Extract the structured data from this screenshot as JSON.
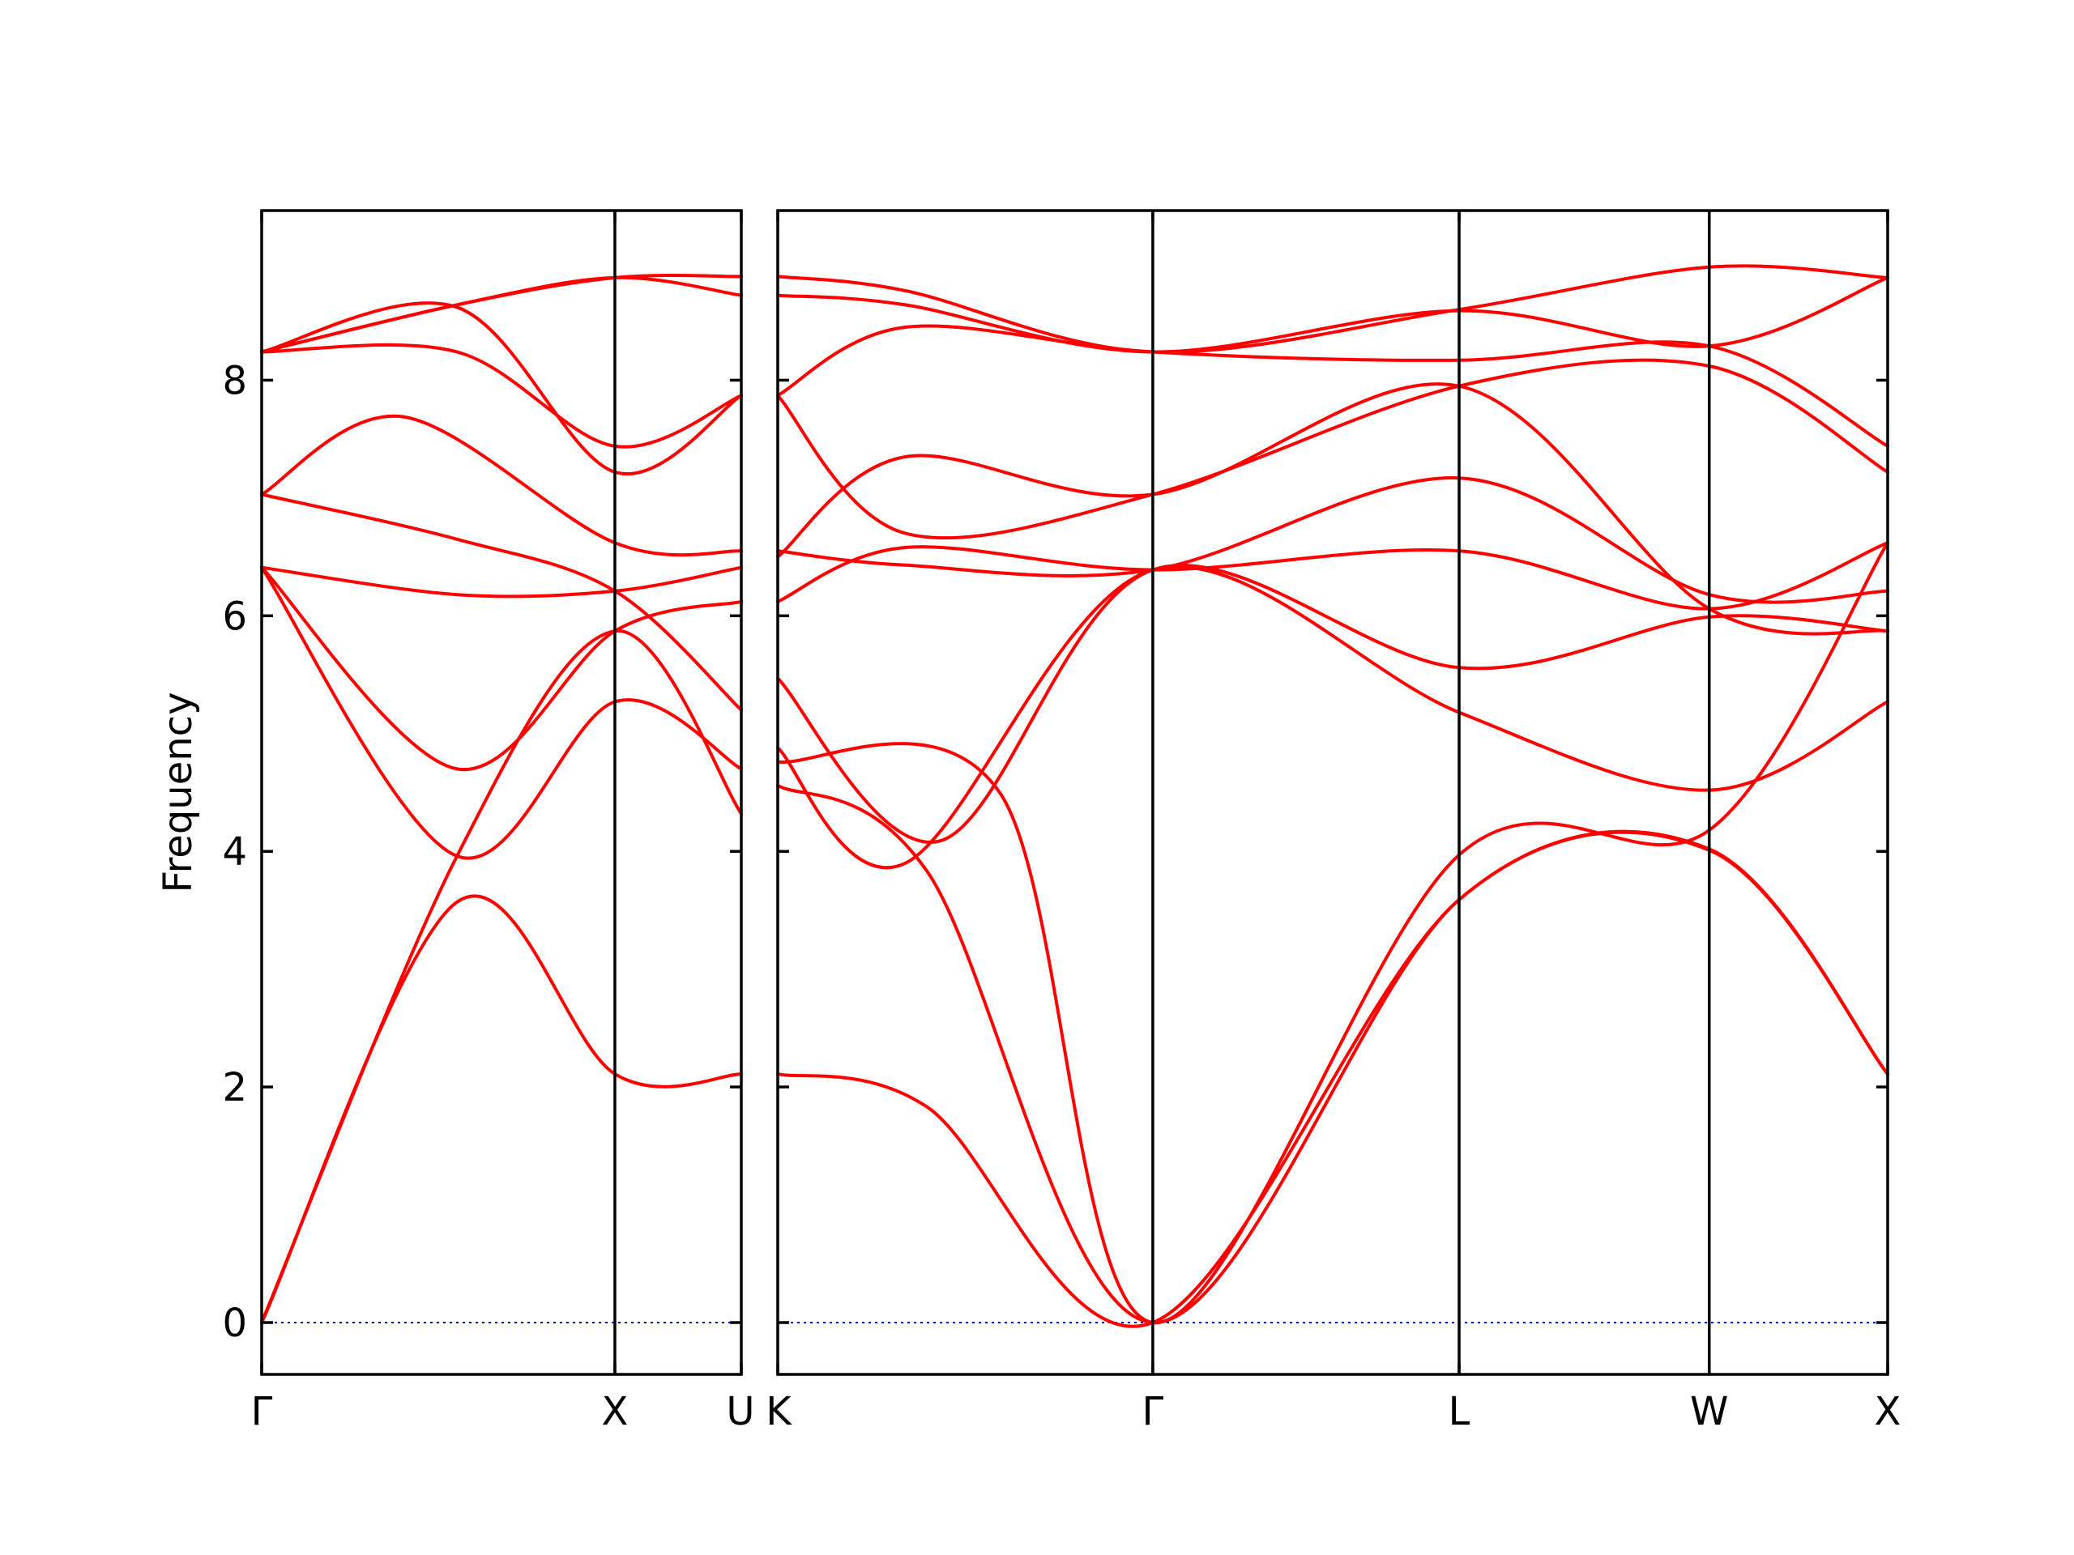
{
  "chart_data": {
    "type": "line",
    "title": "",
    "ylabel": "Frequency",
    "ylim": [
      -0.44,
      9.44
    ],
    "yticks": [
      0,
      2,
      4,
      6,
      8
    ],
    "grid": false,
    "colors": {
      "bands": "#ff0000",
      "zero_line": "#0000cc"
    },
    "panels": [
      {
        "name": "left",
        "xlim": [
          0,
          1.768
        ],
        "labels": [
          {
            "x": 0,
            "text": "Γ"
          },
          {
            "x": 1.302,
            "text": "X"
          },
          {
            "x": 1.768,
            "text": "U"
          }
        ]
      },
      {
        "name": "right",
        "xlim": [
          0,
          4.087
        ],
        "labels": [
          {
            "x": 0,
            "text": "K"
          },
          {
            "x": 1.381,
            "text": "Γ"
          },
          {
            "x": 2.509,
            "text": "L"
          },
          {
            "x": 3.43,
            "text": "W"
          },
          {
            "x": 4.087,
            "text": "X"
          }
        ]
      }
    ],
    "series": [
      {
        "panel": 0,
        "x": [
          0,
          0.72,
          1.302,
          1.768
        ],
        "y": [
          0,
          3.57,
          2.11,
          2.11
        ]
      },
      {
        "panel": 0,
        "x": [
          0,
          0.72,
          1.302,
          1.768
        ],
        "y": [
          0,
          3.96,
          5.87,
          4.32
        ]
      },
      {
        "panel": 0,
        "x": [
          0,
          0.72,
          1.302,
          1.768
        ],
        "y": [
          6.41,
          3.96,
          5.27,
          4.7
        ]
      },
      {
        "panel": 0,
        "x": [
          0,
          0.72,
          1.302,
          1.768
        ],
        "y": [
          6.41,
          4.7,
          5.87,
          6.12
        ]
      },
      {
        "panel": 0,
        "x": [
          0,
          0.72,
          1.302,
          1.768
        ],
        "y": [
          6.41,
          6.18,
          6.21,
          6.41
        ]
      },
      {
        "panel": 0,
        "x": [
          0,
          0.72,
          1.302,
          1.768
        ],
        "y": [
          7.03,
          6.65,
          6.21,
          5.2
        ]
      },
      {
        "panel": 0,
        "x": [
          0,
          0.52,
          1.302,
          1.768
        ],
        "y": [
          7.03,
          7.69,
          6.62,
          6.55
        ]
      },
      {
        "panel": 0,
        "x": [
          0,
          0.72,
          1.302,
          1.768
        ],
        "y": [
          8.24,
          8.24,
          7.44,
          7.87
        ]
      },
      {
        "panel": 0,
        "x": [
          0,
          0.72,
          1.302,
          1.768
        ],
        "y": [
          8.24,
          8.62,
          7.22,
          7.87
        ]
      },
      {
        "panel": 0,
        "x": [
          0,
          0.72,
          1.302,
          1.768
        ],
        "y": [
          8.24,
          8.64,
          8.87,
          8.88
        ]
      },
      {
        "panel": 0,
        "x": [
          0,
          0.72,
          1.302,
          1.768
        ],
        "y": [
          8.24,
          8.64,
          8.87,
          8.72
        ]
      },
      {
        "panel": 1,
        "x": [
          0,
          0.55,
          1.381,
          2.509,
          3.43,
          4.087
        ],
        "y": [
          2.11,
          1.83,
          0,
          3.59,
          4.02,
          2.11
        ]
      },
      {
        "panel": 1,
        "x": [
          0,
          0.55,
          1.381,
          2.509,
          3.43,
          4.087
        ],
        "y": [
          4.56,
          3.83,
          0,
          3.59,
          4.01,
          2.11
        ]
      },
      {
        "panel": 1,
        "x": [
          0,
          0.82,
          1.381,
          2.509,
          3.43,
          4.087
        ],
        "y": [
          4.76,
          4.49,
          0,
          3.97,
          4.18,
          6.62
        ]
      },
      {
        "panel": 1,
        "x": [
          0,
          0.47,
          1.381,
          2.509,
          3.43,
          4.087
        ],
        "y": [
          4.88,
          3.9,
          6.39,
          5.18,
          4.52,
          5.27
        ]
      },
      {
        "panel": 1,
        "x": [
          0,
          0.6,
          1.381,
          2.509,
          3.43,
          4.087
        ],
        "y": [
          5.47,
          4.09,
          6.39,
          5.56,
          5.99,
          5.87
        ]
      },
      {
        "panel": 1,
        "x": [
          0,
          0.47,
          1.381,
          2.509,
          3.43,
          4.087
        ],
        "y": [
          6.12,
          6.58,
          6.39,
          6.55,
          6.06,
          6.62
        ]
      },
      {
        "panel": 1,
        "x": [
          0,
          0.47,
          1.381,
          2.509,
          3.43,
          4.087
        ],
        "y": [
          6.55,
          6.43,
          6.39,
          7.17,
          6.18,
          6.21
        ]
      },
      {
        "panel": 1,
        "x": [
          0,
          0.47,
          1.381,
          2.509,
          3.43,
          4.087
        ],
        "y": [
          6.5,
          7.35,
          7.03,
          7.95,
          6.06,
          5.87
        ]
      },
      {
        "panel": 1,
        "x": [
          0,
          0.47,
          1.381,
          2.509,
          3.43,
          4.087
        ],
        "y": [
          7.87,
          6.7,
          7.03,
          7.95,
          8.12,
          7.22
        ]
      },
      {
        "panel": 1,
        "x": [
          0,
          0.47,
          1.381,
          2.509,
          3.43,
          4.087
        ],
        "y": [
          7.87,
          8.45,
          8.24,
          8.17,
          8.29,
          7.44
        ]
      },
      {
        "panel": 1,
        "x": [
          0,
          0.47,
          1.381,
          2.509,
          3.43,
          4.087
        ],
        "y": [
          8.72,
          8.64,
          8.24,
          8.59,
          8.29,
          8.87
        ]
      },
      {
        "panel": 1,
        "x": [
          0,
          0.47,
          1.381,
          2.509,
          3.43,
          4.087
        ],
        "y": [
          8.88,
          8.76,
          8.24,
          8.6,
          8.96,
          8.87
        ]
      }
    ]
  }
}
